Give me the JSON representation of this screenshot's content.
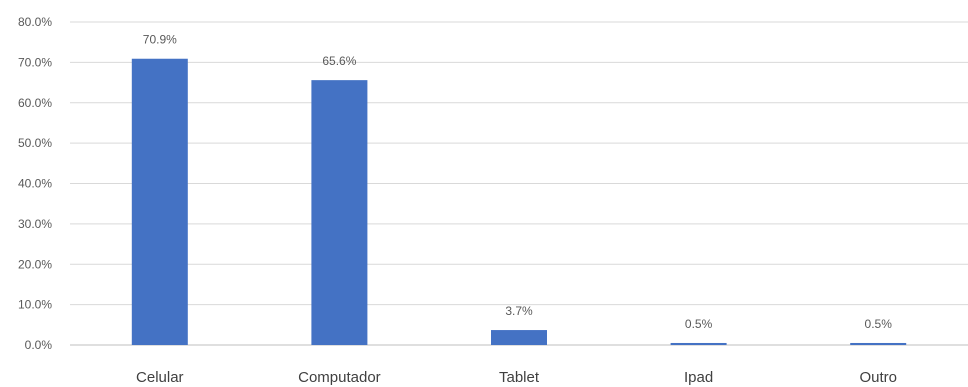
{
  "chart_data": {
    "type": "bar",
    "categories": [
      "Celular",
      "Computador",
      "Tablet",
      "Ipad",
      "Outro"
    ],
    "values": [
      70.9,
      65.6,
      3.7,
      0.5,
      0.5
    ],
    "data_labels": [
      "70.9%",
      "65.6%",
      "3.7%",
      "0.5%",
      "0.5%"
    ],
    "yticks": [
      0,
      10,
      20,
      30,
      40,
      50,
      60,
      70,
      80
    ],
    "ytick_labels": [
      "0.0%",
      "10.0%",
      "20.0%",
      "30.0%",
      "40.0%",
      "50.0%",
      "60.0%",
      "70.0%",
      "80.0%"
    ],
    "ylim": [
      0,
      80
    ],
    "grid": true,
    "title": "",
    "xlabel": "",
    "ylabel": "",
    "bar_color": "#4472c4"
  }
}
